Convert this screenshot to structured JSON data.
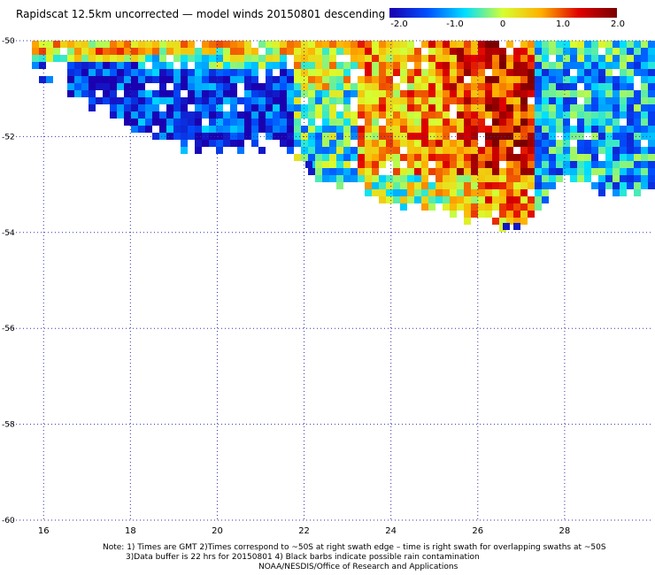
{
  "title": "Rapidscat 12.5km uncorrected — model winds 20150801 descending",
  "colorbar": {
    "labels": [
      "-2.0",
      "-1.0",
      "0",
      "1.0",
      "2.0"
    ],
    "min": -2.0,
    "max": 2.0,
    "colors": [
      "#1a00b0",
      "#0050ff",
      "#00e0ff",
      "#d8ff30",
      "#ffb000",
      "#e00000",
      "#7a0000"
    ]
  },
  "map": {
    "lon_range": [
      15.2,
      30.0
    ],
    "lat_range": [
      -60.0,
      -50.0
    ],
    "lon_ticks": [
      "16",
      "18",
      "20",
      "22",
      "24",
      "26",
      "28"
    ],
    "lat_ticks": [
      "-50",
      "-52",
      "-54",
      "-56",
      "-58",
      "-60"
    ],
    "grid": "dotted"
  },
  "notes": {
    "line1": "Note: 1) Times are GMT 2)Times correspond to ~50S at right swath edge – time is right swath for overlapping swaths at ~50S",
    "line2": "3)Data buffer is 22 hrs for 20150801 4) Black barbs indicate possible rain contamination",
    "line3": "NOAA/NESDIS/Office of Research and Applications"
  }
}
